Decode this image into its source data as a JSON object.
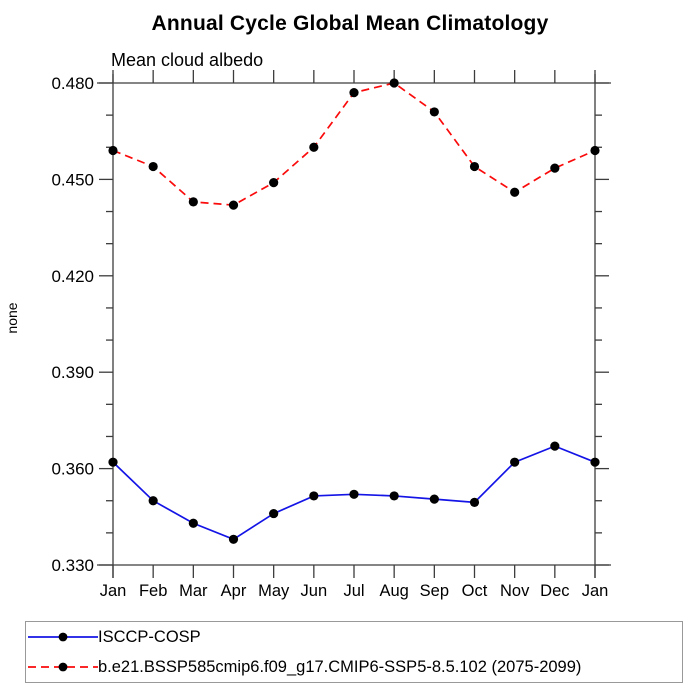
{
  "chart_data": {
    "type": "line",
    "title": "Annual Cycle Global Mean Climatology",
    "subtitle": "Mean cloud albedo",
    "ylabel": "none",
    "xlabel": "",
    "categories": [
      "Jan",
      "Feb",
      "Mar",
      "Apr",
      "May",
      "Jun",
      "Jul",
      "Aug",
      "Sep",
      "Oct",
      "Nov",
      "Dec",
      "Jan"
    ],
    "series": [
      {
        "name": "ISCCP-COSP",
        "color": "#1414e6",
        "line_style": "solid",
        "marker": "filled-circle",
        "marker_color": "#000000",
        "values": [
          0.362,
          0.35,
          0.343,
          0.338,
          0.346,
          0.3515,
          0.352,
          0.3515,
          0.3505,
          0.3495,
          0.362,
          0.367,
          0.362
        ]
      },
      {
        "name": "b.e21.BSSP585cmip6.f09_g17.CMIP6-SSP5-8.5.102 (2075-2099)",
        "color": "#fa0a0a",
        "line_style": "dashed",
        "marker": "filled-circle",
        "marker_color": "#000000",
        "values": [
          0.459,
          0.454,
          0.443,
          0.442,
          0.449,
          0.46,
          0.477,
          0.48,
          0.471,
          0.454,
          0.446,
          0.4535,
          0.459
        ]
      }
    ],
    "ylim": [
      0.33,
      0.48
    ],
    "yticks_major": [
      0.33,
      0.36,
      0.39,
      0.42,
      0.45,
      0.48
    ],
    "ytick_minor_step": 0.01,
    "ytick_label_decimals": 3,
    "grid": false,
    "legend_position": "bottom",
    "axis_color": "#3c3c3c",
    "text_color": "#000000"
  }
}
